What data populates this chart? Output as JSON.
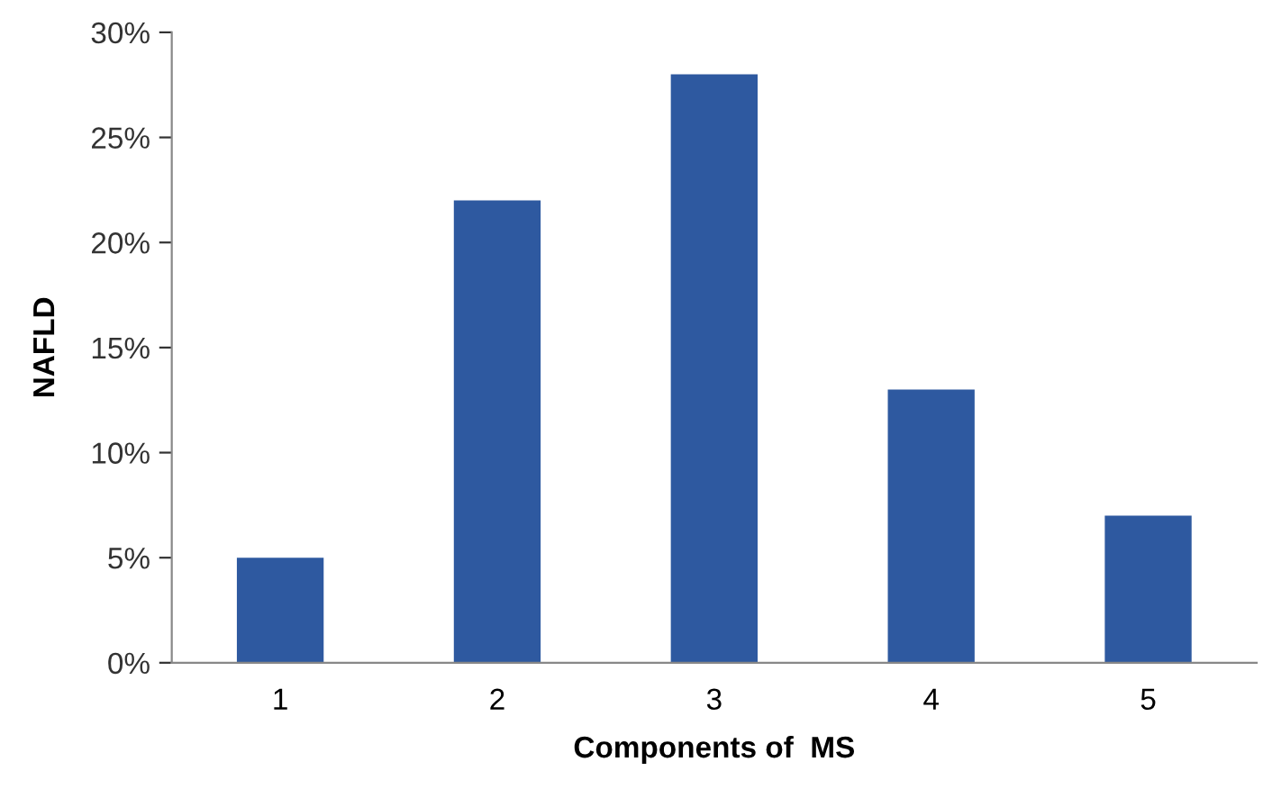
{
  "chart_data": {
    "type": "bar",
    "xlabel": "Components of  MS",
    "ylabel": "NAFLD",
    "categories": [
      "1",
      "2",
      "3",
      "4",
      "5"
    ],
    "values": [
      5,
      22,
      28,
      13,
      7
    ],
    "color": "#2e59a0",
    "ylim": [
      0,
      30
    ],
    "yticks": [
      {
        "value": 0,
        "label": "0%"
      },
      {
        "value": 5,
        "label": "5%"
      },
      {
        "value": 10,
        "label": "10%"
      },
      {
        "value": 15,
        "label": "15%"
      },
      {
        "value": 20,
        "label": "20%"
      },
      {
        "value": 25,
        "label": "25%"
      },
      {
        "value": 30,
        "label": "30%"
      }
    ],
    "grid": false
  }
}
